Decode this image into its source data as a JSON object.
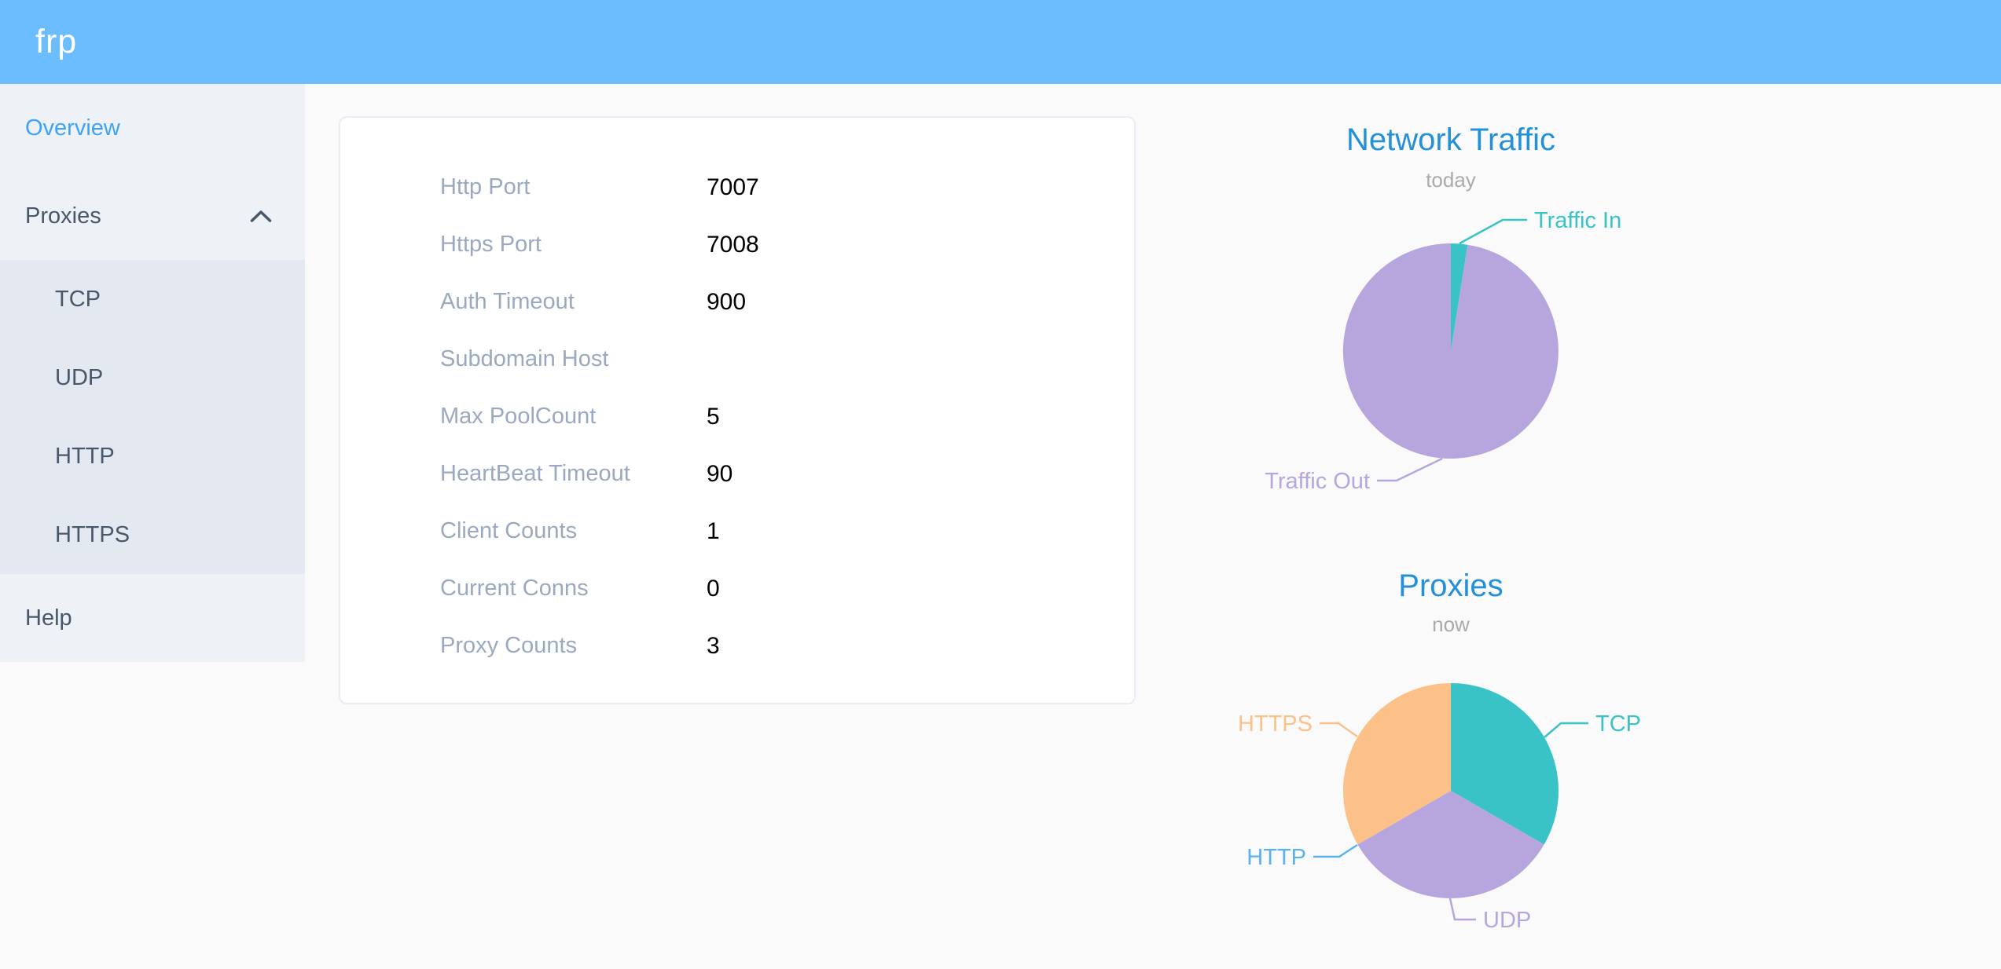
{
  "header": {
    "logo": "frp",
    "background": "#6cbdfe"
  },
  "sidebar": {
    "items": [
      {
        "label": "Overview",
        "active": true
      },
      {
        "label": "Proxies",
        "expanded": true,
        "children": [
          "TCP",
          "UDP",
          "HTTP",
          "HTTPS"
        ]
      },
      {
        "label": "Help"
      }
    ]
  },
  "overview": {
    "rows": [
      {
        "label": "Http Port",
        "value": "7007"
      },
      {
        "label": "Https Port",
        "value": "7008"
      },
      {
        "label": "Auth Timeout",
        "value": "900"
      },
      {
        "label": "Subdomain Host",
        "value": ""
      },
      {
        "label": "Max PoolCount",
        "value": "5"
      },
      {
        "label": "HeartBeat Timeout",
        "value": "90"
      },
      {
        "label": "Client Counts",
        "value": "1"
      },
      {
        "label": "Current Conns",
        "value": "0"
      },
      {
        "label": "Proxy Counts",
        "value": "3"
      }
    ]
  },
  "chart_data": [
    {
      "type": "pie",
      "title": "Network Traffic",
      "subtitle": "today",
      "title_color": "#2490d8",
      "subtitle_color": "#aaaaaa",
      "legend_position": "callout-labels",
      "unit": "percent-estimated-from-pixels",
      "slices": [
        {
          "name": "Traffic In",
          "value": 2.5,
          "color": "#3ac3c6"
        },
        {
          "name": "Traffic Out",
          "value": 97.5,
          "color": "#b7a6de"
        }
      ]
    },
    {
      "type": "pie",
      "title": "Proxies",
      "subtitle": "now",
      "title_color": "#2490d8",
      "subtitle_color": "#aaaaaa",
      "legend_position": "callout-labels",
      "unit": "proxy-count",
      "slices": [
        {
          "name": "TCP",
          "value": 1,
          "color": "#3ac3c6"
        },
        {
          "name": "UDP",
          "value": 1,
          "color": "#b7a6de"
        },
        {
          "name": "HTTP",
          "value": 0,
          "color": "#5ab1ef"
        },
        {
          "name": "HTTPS",
          "value": 1,
          "color": "#fbc189"
        }
      ]
    }
  ]
}
